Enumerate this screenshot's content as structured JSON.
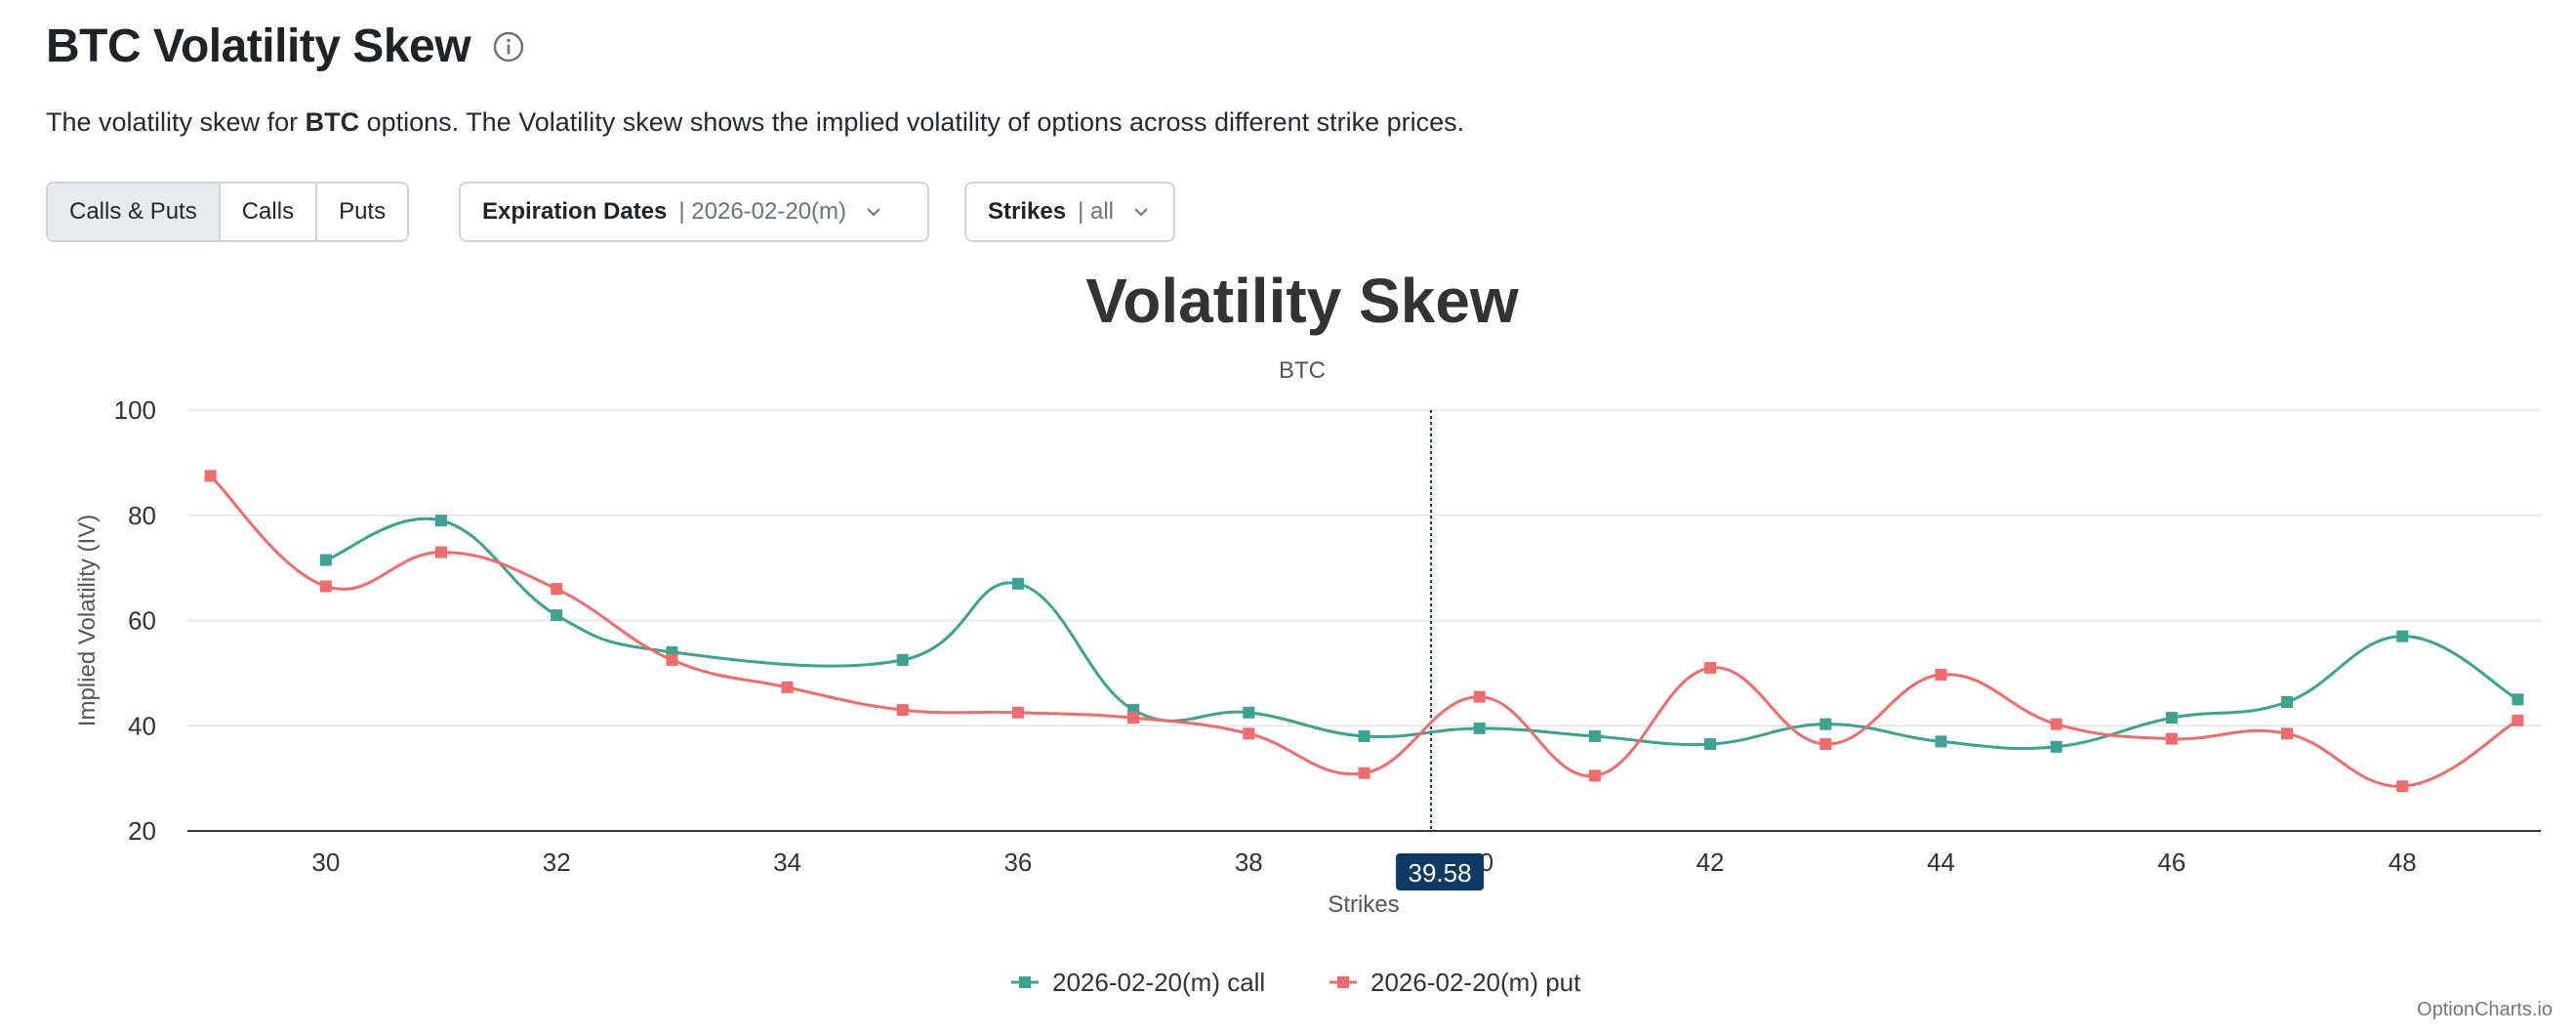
{
  "header": {
    "title": "BTC Volatility Skew",
    "description_prefix": "The volatility skew for ",
    "description_symbol": "BTC",
    "description_suffix": " options. The Volatility skew shows the implied volatility of options across different strike prices."
  },
  "controls": {
    "option_type": {
      "items": [
        "Calls & Puts",
        "Calls",
        "Puts"
      ],
      "selected": "Calls & Puts"
    },
    "expiration": {
      "label": "Expiration Dates",
      "value": "| 2026-02-20(m)"
    },
    "strikes": {
      "label": "Strikes",
      "value": "| all"
    }
  },
  "credit": "OptionCharts.io",
  "chart_data": {
    "type": "line",
    "title": "Volatility Skew",
    "subtitle": "BTC",
    "xlabel": "Strikes",
    "ylabel": "Implied Volatility (IV)",
    "xlim": [
      28.8,
      49.2
    ],
    "ylim": [
      20,
      100
    ],
    "xticks": [
      30,
      32,
      34,
      36,
      38,
      40,
      42,
      44,
      46,
      48
    ],
    "yticks": [
      20,
      40,
      60,
      80,
      100
    ],
    "grid": "horizontal",
    "legend": "bottom-center",
    "crosshair": {
      "x": 39.58,
      "label": "39.58"
    },
    "series": [
      {
        "name": "2026-02-20(m) call",
        "color": "#3aa391",
        "points": [
          [
            30,
            71.5
          ],
          [
            31,
            79
          ],
          [
            32,
            61
          ],
          [
            33,
            54
          ],
          [
            35,
            52.5
          ],
          [
            36,
            67
          ],
          [
            37,
            43
          ],
          [
            38,
            42.5
          ],
          [
            39,
            38
          ],
          [
            40,
            39.5
          ],
          [
            41,
            38
          ],
          [
            42,
            36.5
          ],
          [
            43,
            40.3
          ],
          [
            44,
            37
          ],
          [
            45,
            36
          ],
          [
            46,
            41.5
          ],
          [
            47,
            44.5
          ],
          [
            48,
            57
          ],
          [
            49,
            45
          ]
        ]
      },
      {
        "name": "2026-02-20(m) put",
        "color": "#f26b6b",
        "points": [
          [
            29,
            87.5
          ],
          [
            30,
            66.5
          ],
          [
            31,
            73
          ],
          [
            32,
            66
          ],
          [
            33,
            52.5
          ],
          [
            34,
            47.3
          ],
          [
            35,
            43
          ],
          [
            36,
            42.5
          ],
          [
            37,
            41.5
          ],
          [
            38,
            38.5
          ],
          [
            39,
            31
          ],
          [
            40,
            45.5
          ],
          [
            41,
            30.5
          ],
          [
            42,
            51
          ],
          [
            43,
            36.5
          ],
          [
            44,
            49.7
          ],
          [
            45,
            40.3
          ],
          [
            46,
            37.5
          ],
          [
            47,
            38.5
          ],
          [
            48,
            28.5
          ],
          [
            49,
            41
          ]
        ]
      }
    ]
  }
}
